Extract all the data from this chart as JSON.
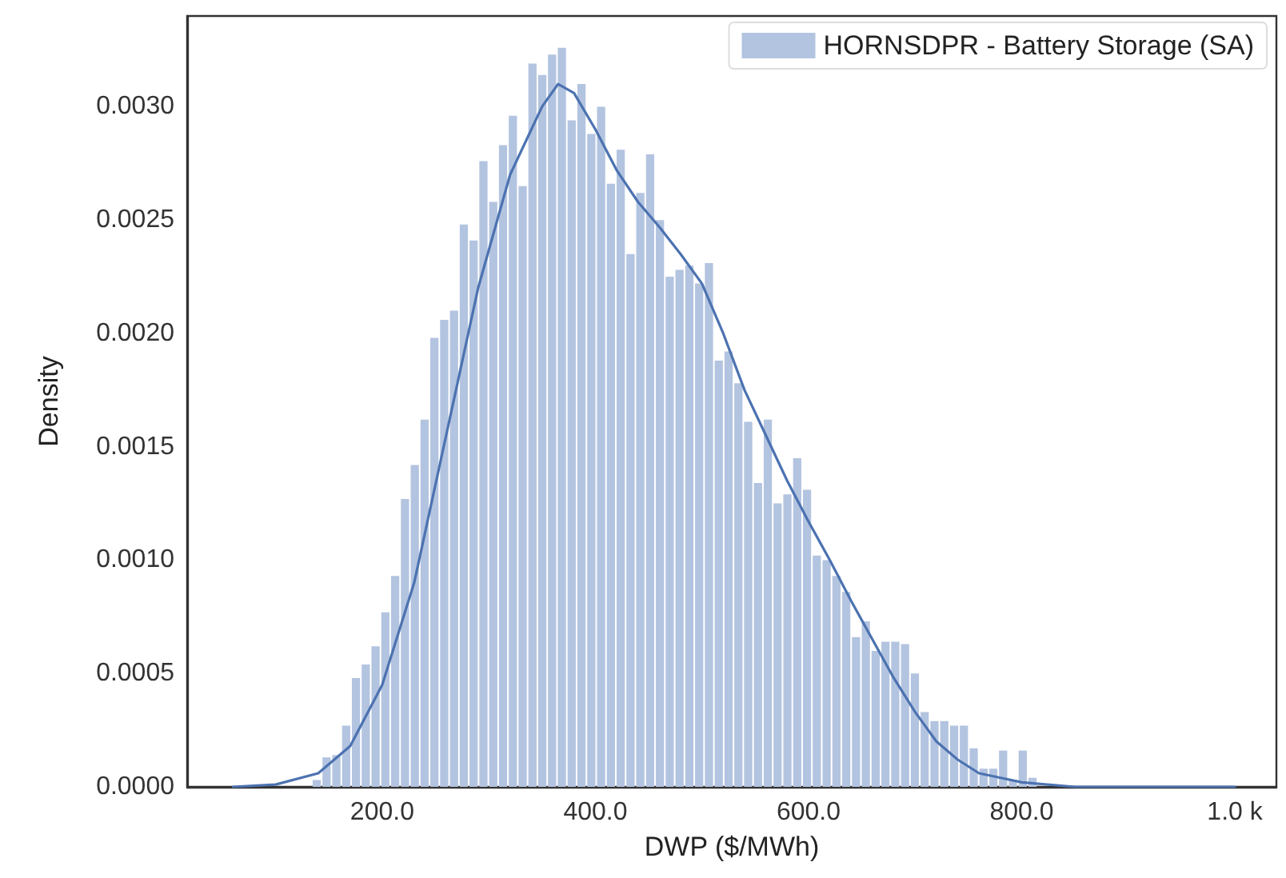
{
  "chart_data": {
    "type": "histogram",
    "xlabel": "DWP ($/MWh)",
    "ylabel": "Density",
    "xlim": [
      17,
      1039
    ],
    "ylim": [
      0,
      0.0034
    ],
    "xticks": [
      {
        "value": 200,
        "label": "200.0"
      },
      {
        "value": 400,
        "label": "400.0"
      },
      {
        "value": 600,
        "label": "600.0"
      },
      {
        "value": 800,
        "label": "800.0"
      },
      {
        "value": 1000,
        "label": "1.0 k"
      }
    ],
    "yticks": [
      {
        "value": 0,
        "label": "0.0000"
      },
      {
        "value": 0.0005,
        "label": "0.0005"
      },
      {
        "value": 0.001,
        "label": "0.0010"
      },
      {
        "value": 0.0015,
        "label": "0.0015"
      },
      {
        "value": 0.002,
        "label": "0.0020"
      },
      {
        "value": 0.0025,
        "label": "0.0025"
      },
      {
        "value": 0.003,
        "label": "0.0030"
      }
    ],
    "grid": false,
    "legend": "top right",
    "bins": [
      134.0,
      143.2,
      152.4,
      161.6,
      170.8,
      180.0,
      189.2,
      198.4,
      207.6,
      216.8,
      226.0,
      235.2,
      244.4,
      253.6,
      262.8,
      272.0,
      281.2,
      290.4,
      299.6,
      308.8,
      318.0,
      327.2,
      336.4,
      345.6,
      354.8,
      364.0,
      373.2,
      382.4,
      391.6,
      400.8,
      410.0,
      419.2,
      428.4,
      437.6,
      446.8,
      456.0,
      465.2,
      474.4,
      483.6,
      492.8,
      502.0,
      511.2,
      520.4,
      529.6,
      538.8,
      548.0,
      557.2,
      566.4,
      575.6,
      584.8,
      594.0,
      603.2,
      612.4,
      621.6,
      630.8,
      640.0,
      649.2,
      658.4,
      667.6,
      676.8,
      686.0,
      695.2,
      704.4,
      713.6,
      722.8,
      732.0,
      741.2,
      750.4,
      759.6,
      768.8,
      778.0,
      787.2,
      796.4,
      805.6,
      814.8
    ],
    "series": [
      {
        "name": "HORNSDPR - Battery Storage (SA)",
        "color": "#b3c4e0",
        "values": [
          3e-05,
          0.00013,
          0.00014,
          0.00027,
          0.00048,
          0.00054,
          0.00062,
          0.00077,
          0.00093,
          0.00127,
          0.00142,
          0.00162,
          0.00198,
          0.00206,
          0.0021,
          0.00248,
          0.00241,
          0.00276,
          0.00258,
          0.00283,
          0.00296,
          0.00265,
          0.00319,
          0.00314,
          0.00323,
          0.00326,
          0.00294,
          0.0031,
          0.00288,
          0.003,
          0.00266,
          0.00281,
          0.00235,
          0.00262,
          0.00279,
          0.0025,
          0.00225,
          0.00228,
          0.0023,
          0.00222,
          0.00231,
          0.00188,
          0.00192,
          0.00178,
          0.00161,
          0.00134,
          0.00162,
          0.00125,
          0.00129,
          0.00145,
          0.00131,
          0.00102,
          0.001,
          0.00093,
          0.00086,
          0.00066,
          0.00073,
          0.0006,
          0.00064,
          0.00064,
          0.00063,
          0.0005,
          0.00033,
          0.00029,
          0.00029,
          0.00027,
          0.00027,
          0.00017,
          8e-05,
          8e-05,
          0.00016,
          3e-05,
          0.00016,
          4e-05
        ]
      },
      {
        "type": "line",
        "color": "#4c72b0",
        "marker": "none",
        "x": [
          60,
          100,
          140,
          170,
          200,
          230,
          260,
          290,
          320,
          350,
          365,
          380,
          400,
          420,
          440,
          460,
          480,
          500,
          520,
          540,
          560,
          580,
          600,
          620,
          640,
          660,
          680,
          700,
          720,
          740,
          760,
          800,
          850,
          1000
        ],
        "values": [
          0,
          1e-05,
          6e-05,
          0.00018,
          0.00045,
          0.0009,
          0.00155,
          0.0022,
          0.0027,
          0.003,
          0.0031,
          0.00306,
          0.0029,
          0.00272,
          0.00258,
          0.00247,
          0.00235,
          0.00222,
          0.002,
          0.00175,
          0.00155,
          0.00135,
          0.00117,
          0.001,
          0.00082,
          0.00065,
          0.00048,
          0.00033,
          0.0002,
          0.00012,
          6e-05,
          2e-05,
          0,
          0
        ]
      }
    ]
  }
}
